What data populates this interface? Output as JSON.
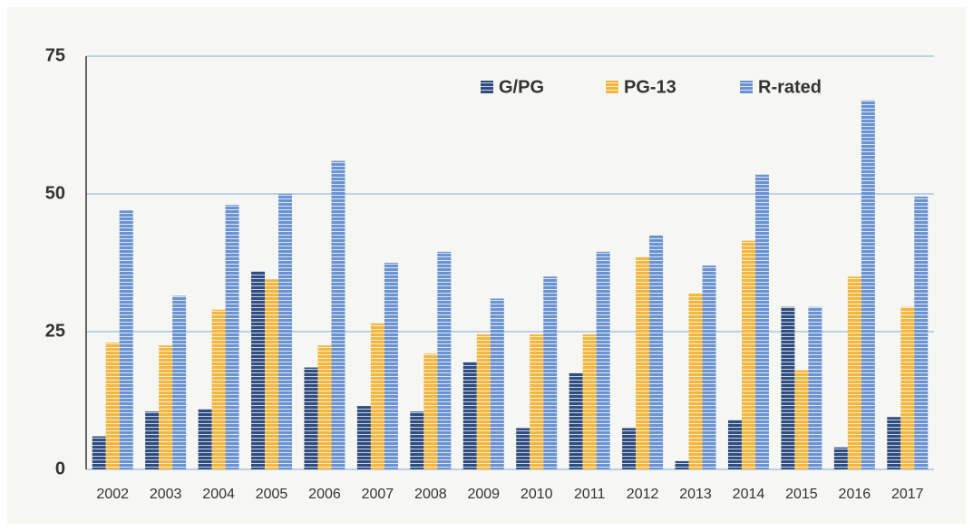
{
  "chart_data": {
    "type": "bar",
    "categories": [
      "2002",
      "2003",
      "2004",
      "2005",
      "2006",
      "2007",
      "2008",
      "2009",
      "2010",
      "2011",
      "2012",
      "2013",
      "2014",
      "2015",
      "2016",
      "2017"
    ],
    "series": [
      {
        "name": "G/PG",
        "color": "#2f4d80",
        "values": [
          6,
          10.5,
          11,
          36,
          18.5,
          11.5,
          10.5,
          19.5,
          7.5,
          17.5,
          7.5,
          1.5,
          9,
          29.5,
          4,
          9.5
        ]
      },
      {
        "name": "PG-13",
        "color": "#f4b63f",
        "values": [
          23,
          22.5,
          29,
          34.5,
          22.5,
          26.5,
          21,
          24.5,
          24.5,
          24.5,
          38.5,
          32,
          41.5,
          18,
          35,
          29.5
        ]
      },
      {
        "name": "R-rated",
        "color": "#6b93d1",
        "values": [
          47,
          31.5,
          48,
          50,
          56,
          37.5,
          39.5,
          31,
          35,
          39.5,
          42.5,
          37,
          53.5,
          29.5,
          67,
          49.5
        ]
      }
    ],
    "ylim": [
      0,
      75
    ],
    "yticks": [
      0,
      25,
      50,
      75
    ],
    "grid": true
  }
}
